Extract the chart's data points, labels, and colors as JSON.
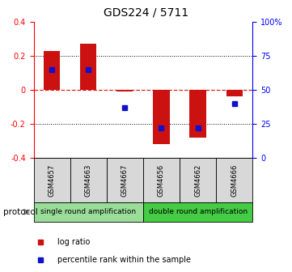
{
  "title": "GDS224 / 5711",
  "samples": [
    "GSM4657",
    "GSM4663",
    "GSM4667",
    "GSM4656",
    "GSM4662",
    "GSM4666"
  ],
  "log_ratio": [
    0.23,
    0.27,
    -0.01,
    -0.32,
    -0.28,
    -0.04
  ],
  "percentile_rank_pct": [
    65,
    65,
    37,
    22,
    22,
    40
  ],
  "ylim": [
    -0.4,
    0.4
  ],
  "yticks_left": [
    -0.4,
    -0.2,
    0.0,
    0.2,
    0.4
  ],
  "yticks_right": [
    0,
    25,
    50,
    75,
    100
  ],
  "yticks_right_labels": [
    "0",
    "25",
    "50",
    "75",
    "100%"
  ],
  "bar_color": "#cc1111",
  "dot_color": "#1111cc",
  "hline_color": "#dd2222",
  "grid_color": "#111111",
  "protocol_groups": [
    {
      "label": "single round amplification",
      "start": 0,
      "end": 3,
      "color": "#99dd99"
    },
    {
      "label": "double round amplification",
      "start": 3,
      "end": 6,
      "color": "#44cc44"
    }
  ],
  "legend_items": [
    {
      "color": "#cc1111",
      "label": "log ratio"
    },
    {
      "color": "#1111cc",
      "label": "percentile rank within the sample"
    }
  ],
  "protocol_label": "protocol",
  "bar_width": 0.45
}
